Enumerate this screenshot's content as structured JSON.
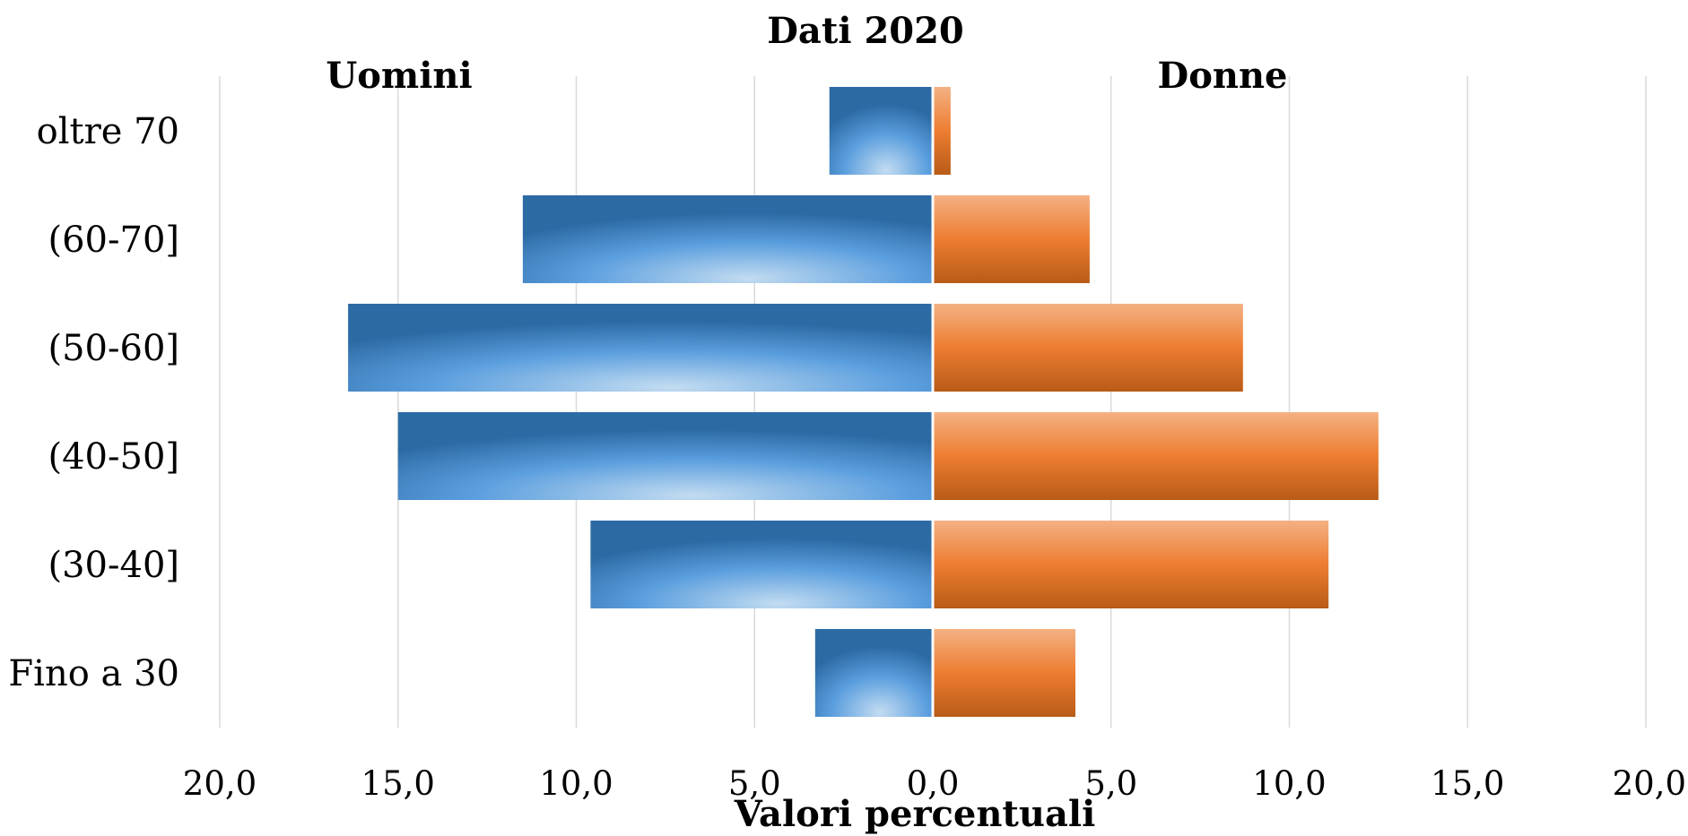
{
  "chart_data": {
    "type": "bar",
    "orientation": "horizontal",
    "layout": "population-pyramid",
    "title": "Dati 2020",
    "xlabel": "Valori percentuali",
    "categories": [
      "oltre 70",
      "(60-70]",
      "(50-60]",
      "(40-50]",
      "(30-40]",
      "Fino a 30"
    ],
    "series": [
      {
        "name": "Uomini",
        "side": "left",
        "color": "#5b9bd5",
        "values": [
          2.9,
          11.5,
          16.4,
          15.0,
          9.6,
          3.3
        ]
      },
      {
        "name": "Donne",
        "side": "right",
        "color": "#ed7d31",
        "values": [
          0.5,
          4.4,
          8.7,
          12.5,
          11.1,
          4.0
        ]
      }
    ],
    "xlim": [
      -20,
      20
    ],
    "xticks": [
      -20,
      -15,
      -10,
      -5,
      0,
      5,
      10,
      15,
      20
    ],
    "tick_labels": [
      "20,0",
      "15,0",
      "10,0",
      "5,0",
      "0,0",
      "5,0",
      "10,0",
      "15,0",
      "20,0"
    ],
    "grid": "vertical"
  }
}
